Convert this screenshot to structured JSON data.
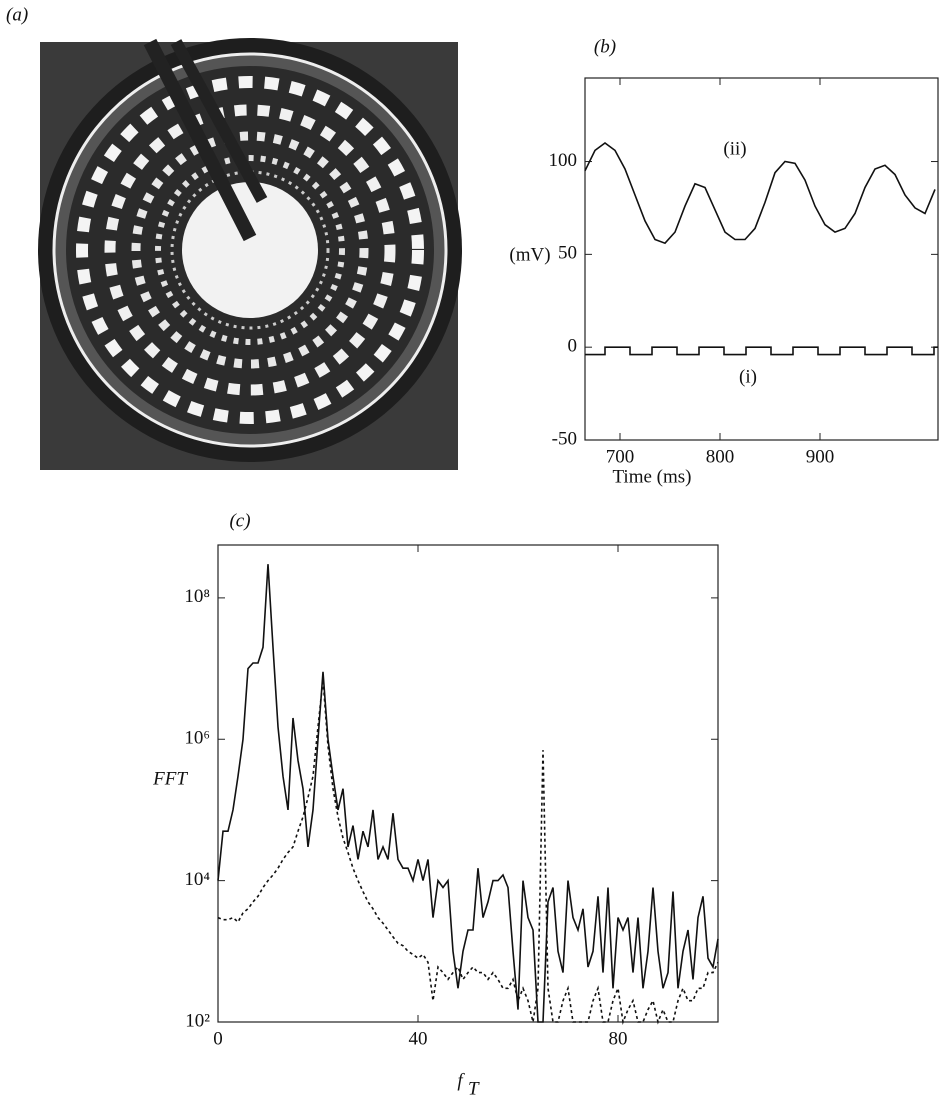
{
  "figure_label_a": "(a)",
  "chart_data": [
    {
      "type": "line",
      "title": "(b)",
      "x_label": "Time (ms)",
      "y_label": "(mV)",
      "xlim": [
        665,
        1018
      ],
      "xticks": [
        700,
        800,
        900
      ],
      "ylim": [
        -50,
        145
      ],
      "yticks": [
        -50,
        0,
        50,
        100
      ],
      "series": [
        {
          "name": "(i)",
          "color": "#111111",
          "x": [
            665,
            685,
            685,
            710,
            710,
            732,
            732,
            757,
            757,
            779,
            779,
            804,
            804,
            826,
            826,
            851,
            851,
            873,
            873,
            898,
            898,
            920,
            920,
            945,
            945,
            967,
            967,
            992,
            992,
            1014,
            1014,
            1018
          ],
          "values": [
            -4,
            -4,
            0,
            0,
            -4,
            -4,
            0,
            0,
            -4,
            -4,
            0,
            0,
            -4,
            -4,
            0,
            0,
            -4,
            -4,
            0,
            0,
            -4,
            -4,
            0,
            0,
            -4,
            -4,
            0,
            0,
            -4,
            -4,
            0,
            0
          ]
        },
        {
          "name": "(ii)",
          "color": "#111111",
          "x": [
            665,
            675,
            685,
            695,
            705,
            715,
            725,
            735,
            745,
            755,
            765,
            775,
            785,
            795,
            805,
            815,
            825,
            835,
            845,
            855,
            865,
            875,
            885,
            895,
            905,
            915,
            925,
            935,
            945,
            955,
            965,
            975,
            985,
            995,
            1005,
            1015
          ],
          "values": [
            95,
            106,
            110,
            106,
            96,
            82,
            68,
            58,
            56,
            62,
            76,
            88,
            86,
            74,
            62,
            58,
            58,
            64,
            78,
            94,
            100,
            99,
            90,
            76,
            66,
            62,
            64,
            72,
            86,
            96,
            98,
            93,
            82,
            75,
            72,
            85
          ]
        }
      ]
    },
    {
      "type": "line",
      "title": "(c)",
      "x_label": "f",
      "x_label_subscript": "T",
      "y_label": "FFT",
      "log": true,
      "xlim": [
        0,
        100
      ],
      "xticks": [
        0,
        40,
        80
      ],
      "ylim": [
        100,
        560000000
      ],
      "yticks": [
        {
          "value": 100,
          "label": "10²"
        },
        {
          "value": 10000,
          "label": "10⁴"
        },
        {
          "value": 1000000,
          "label": "10⁶"
        },
        {
          "value": 100000000,
          "label": "10⁸"
        }
      ],
      "x": [
        0,
        1,
        2,
        3,
        4,
        5,
        6,
        7,
        8,
        9,
        10,
        11,
        12,
        13,
        14,
        15,
        16,
        17,
        18,
        19,
        20,
        21,
        22,
        23,
        24,
        25,
        26,
        27,
        28,
        29,
        30,
        31,
        32,
        33,
        34,
        35,
        36,
        37,
        38,
        39,
        40,
        41,
        42,
        43,
        44,
        45,
        46,
        47,
        48,
        49,
        50,
        51,
        52,
        53,
        54,
        55,
        56,
        57,
        58,
        59,
        60,
        61,
        62,
        63,
        64,
        65,
        66,
        67,
        68,
        69,
        70,
        71,
        72,
        73,
        74,
        75,
        76,
        77,
        78,
        79,
        80,
        81,
        82,
        83,
        84,
        85,
        86,
        87,
        88,
        89,
        90,
        91,
        92,
        93,
        94,
        95,
        96,
        97,
        98,
        99,
        100
      ],
      "series": [
        {
          "color": "#111111",
          "style": "solid",
          "values": [
            10000.0,
            50000.0,
            50000.0,
            100000.0,
            300000.0,
            1000000.0,
            10000000.0,
            12000000.0,
            12000000.0,
            20000000.0,
            300000000.0,
            20000000.0,
            1500000.0,
            300000.0,
            100000.0,
            2000000.0,
            500000.0,
            200000.0,
            30000.0,
            100000.0,
            1000000.0,
            9000000.0,
            1000000.0,
            300000.0,
            100000.0,
            200000.0,
            30000.0,
            60000.0,
            20000.0,
            50000.0,
            30000.0,
            100000.0,
            20000.0,
            30000.0,
            20000.0,
            90000.0,
            20000.0,
            15000.0,
            15000.0,
            10000.0,
            20000.0,
            10000.0,
            20000.0,
            3000.0,
            10000.0,
            8000.0,
            10000.0,
            1000.0,
            300,
            1000.0,
            2000.0,
            2000.0,
            15000.0,
            3000.0,
            5000.0,
            10000.0,
            10000.0,
            12000.0,
            8000.0,
            1000.0,
            150,
            10000.0,
            3000.0,
            2000.0,
            100,
            100,
            5000.0,
            8000.0,
            1000.0,
            500,
            10000.0,
            3000.0,
            2000.0,
            4000.0,
            600,
            1000.0,
            6000.0,
            500,
            8000.0,
            300,
            3000.0,
            2000.0,
            3000.0,
            500,
            3000.0,
            300,
            1000.0,
            8000.0,
            1000.0,
            300,
            500,
            7000.0,
            300,
            1000.0,
            2000.0,
            400,
            3000.0,
            6000.0,
            800,
            600,
            1500
          ]
        },
        {
          "color": "#111111",
          "style": "dotted",
          "values": [
            3000.0,
            2800.0,
            2800.0,
            3000.0,
            2600.0,
            3500.0,
            4000.0,
            5000.0,
            6000.0,
            8000.0,
            10000.0,
            12000.0,
            15000.0,
            20000.0,
            25000.0,
            30000.0,
            50000.0,
            80000.0,
            150000.0,
            300000.0,
            1500000.0,
            7000000.0,
            800000.0,
            200000.0,
            80000.0,
            40000.0,
            25000.0,
            15000.0,
            10000.0,
            7000.0,
            5000.0,
            4000.0,
            3000.0,
            2500.0,
            2000.0,
            1600.0,
            1300.0,
            1200.0,
            1000.0,
            900,
            800,
            900,
            700,
            200,
            600,
            500,
            400,
            500,
            600,
            400,
            500,
            600,
            500,
            500,
            400,
            500,
            400,
            300,
            300,
            400,
            200,
            300,
            200,
            100,
            300,
            700000.0,
            300,
            100,
            100,
            200,
            300,
            100,
            100,
            100,
            100,
            200,
            300,
            100,
            100,
            200,
            300,
            100,
            150,
            200,
            100,
            100,
            150,
            200,
            100,
            150,
            100,
            100,
            200,
            300,
            200,
            200,
            300,
            300,
            500,
            500,
            700
          ]
        }
      ]
    }
  ]
}
